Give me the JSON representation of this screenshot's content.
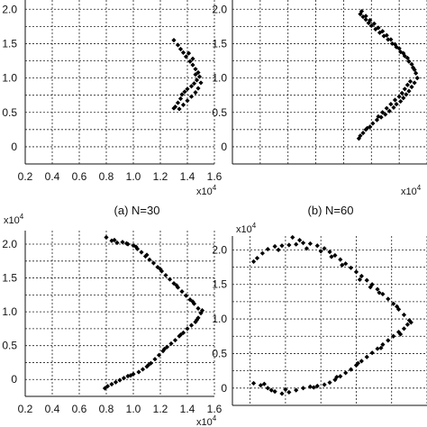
{
  "figure": {
    "panels": [
      {
        "caption": "(a) N=30",
        "x_multiplier_text": "x10",
        "x_multiplier_exp": "4",
        "y_multiplier_text": "",
        "y_multiplier_exp": "",
        "x_tick_labels": [
          "0.2",
          "0.4",
          "0.6",
          "0.8",
          "1.0",
          "1.2",
          "1.4",
          "1.6"
        ],
        "y_tick_labels": [
          "0",
          "0.5",
          "1.0",
          "1.5",
          "2.0"
        ]
      },
      {
        "caption": "(b) N=60",
        "x_multiplier_text": "x10",
        "x_multiplier_exp": "4",
        "y_multiplier_text": "",
        "y_multiplier_exp": "",
        "x_tick_labels": [],
        "y_tick_labels": [
          "0",
          "0.5",
          "1.0",
          "1.5",
          "2.0"
        ]
      },
      {
        "caption": "",
        "x_multiplier_text": "x10",
        "x_multiplier_exp": "4",
        "y_multiplier_text": "x10",
        "y_multiplier_exp": "4",
        "x_tick_labels": [
          "0.2",
          "0.4",
          "0.6",
          "0.8",
          "1.0",
          "1.2",
          "1.4",
          "1.6"
        ],
        "y_tick_labels": [
          "0",
          "0.5",
          "1.0",
          "1.5",
          "2.0"
        ]
      },
      {
        "caption": "",
        "x_multiplier_text": "",
        "x_multiplier_exp": "",
        "y_multiplier_text": "x10",
        "y_multiplier_exp": "4",
        "x_tick_labels": [],
        "y_tick_labels": [
          "0",
          "0.5",
          "1.0",
          "1.5",
          "2.0"
        ]
      }
    ]
  },
  "chart_data": [
    {
      "type": "scatter",
      "title": "(a) N=30",
      "xlabel": "x10^4",
      "ylabel": "",
      "xlim": [
        0.2,
        1.6
      ],
      "ylim": [
        -0.25,
        2.2
      ],
      "grid": true,
      "points": [
        [
          1.3,
          1.55
        ],
        [
          1.33,
          1.48
        ],
        [
          1.35,
          1.42
        ],
        [
          1.37,
          1.37
        ],
        [
          1.39,
          1.31
        ],
        [
          1.42,
          1.24
        ],
        [
          1.44,
          1.19
        ],
        [
          1.46,
          1.13
        ],
        [
          1.48,
          1.08
        ],
        [
          1.49,
          1.02
        ],
        [
          1.47,
          0.97
        ],
        [
          1.45,
          0.92
        ],
        [
          1.43,
          0.88
        ],
        [
          1.4,
          0.84
        ],
        [
          1.38,
          0.8
        ],
        [
          1.36,
          0.76
        ],
        [
          1.35,
          0.7
        ],
        [
          1.33,
          0.64
        ],
        [
          1.31,
          0.58
        ],
        [
          1.34,
          0.55
        ],
        [
          1.37,
          0.61
        ],
        [
          1.4,
          0.67
        ],
        [
          1.43,
          0.73
        ],
        [
          1.46,
          0.79
        ],
        [
          1.48,
          0.85
        ],
        [
          1.5,
          0.93
        ],
        [
          1.46,
          1.05
        ],
        [
          1.44,
          1.28
        ],
        [
          1.41,
          1.36
        ],
        [
          1.3,
          0.56
        ]
      ]
    },
    {
      "type": "scatter",
      "title": "(b) N=60",
      "xlabel": "x10^4",
      "ylabel": "",
      "xlim": [
        0.2,
        1.6
      ],
      "ylim": [
        -0.25,
        2.2
      ],
      "grid": true,
      "points": [
        [
          1.12,
          1.93
        ],
        [
          1.14,
          1.89
        ],
        [
          1.16,
          1.85
        ],
        [
          1.18,
          1.8
        ],
        [
          1.2,
          1.76
        ],
        [
          1.23,
          1.71
        ],
        [
          1.26,
          1.66
        ],
        [
          1.29,
          1.61
        ],
        [
          1.32,
          1.56
        ],
        [
          1.35,
          1.5
        ],
        [
          1.38,
          1.45
        ],
        [
          1.41,
          1.38
        ],
        [
          1.44,
          1.32
        ],
        [
          1.47,
          1.24
        ],
        [
          1.5,
          1.15
        ],
        [
          1.52,
          1.07
        ],
        [
          1.53,
          1.0
        ],
        [
          1.51,
          0.93
        ],
        [
          1.49,
          0.87
        ],
        [
          1.47,
          0.81
        ],
        [
          1.45,
          0.76
        ],
        [
          1.43,
          0.71
        ],
        [
          1.41,
          0.66
        ],
        [
          1.38,
          0.62
        ],
        [
          1.36,
          0.57
        ],
        [
          1.33,
          0.52
        ],
        [
          1.3,
          0.47
        ],
        [
          1.27,
          0.43
        ],
        [
          1.24,
          0.39
        ],
        [
          1.21,
          0.34
        ],
        [
          1.19,
          0.29
        ],
        [
          1.16,
          0.25
        ],
        [
          1.14,
          0.2
        ],
        [
          1.12,
          0.16
        ],
        [
          1.11,
          0.12
        ],
        [
          1.13,
          1.97
        ],
        [
          1.16,
          1.9
        ],
        [
          1.19,
          1.84
        ],
        [
          1.22,
          1.79
        ],
        [
          1.25,
          1.73
        ],
        [
          1.28,
          1.68
        ],
        [
          1.31,
          1.62
        ],
        [
          1.34,
          1.56
        ],
        [
          1.37,
          1.49
        ],
        [
          1.4,
          1.43
        ],
        [
          1.43,
          1.36
        ],
        [
          1.46,
          1.29
        ],
        [
          1.49,
          1.2
        ],
        [
          1.51,
          1.12
        ],
        [
          1.48,
          0.95
        ],
        [
          1.46,
          0.9
        ],
        [
          1.44,
          0.84
        ],
        [
          1.42,
          0.78
        ],
        [
          1.4,
          0.73
        ],
        [
          1.37,
          0.68
        ],
        [
          1.34,
          0.62
        ],
        [
          1.31,
          0.56
        ],
        [
          1.28,
          0.5
        ],
        [
          1.25,
          0.44
        ],
        [
          1.17,
          0.27
        ]
      ]
    },
    {
      "type": "scatter",
      "title": "",
      "xlabel": "x10^4",
      "ylabel": "x10^4",
      "xlim": [
        0.2,
        1.6
      ],
      "ylim": [
        -0.25,
        2.2
      ],
      "grid": true,
      "points": [
        [
          0.8,
          2.1
        ],
        [
          0.84,
          2.05
        ],
        [
          0.88,
          2.02
        ],
        [
          0.92,
          2.03
        ],
        [
          0.96,
          2.0
        ],
        [
          1.0,
          1.98
        ],
        [
          1.03,
          1.93
        ],
        [
          1.06,
          1.88
        ],
        [
          1.09,
          1.82
        ],
        [
          1.12,
          1.77
        ],
        [
          1.15,
          1.72
        ],
        [
          1.18,
          1.66
        ],
        [
          1.21,
          1.6
        ],
        [
          1.24,
          1.54
        ],
        [
          1.27,
          1.48
        ],
        [
          1.3,
          1.42
        ],
        [
          1.33,
          1.36
        ],
        [
          1.36,
          1.3
        ],
        [
          1.39,
          1.24
        ],
        [
          1.42,
          1.18
        ],
        [
          1.45,
          1.12
        ],
        [
          1.48,
          1.05
        ],
        [
          1.5,
          0.98
        ],
        [
          1.48,
          0.91
        ],
        [
          1.46,
          0.85
        ],
        [
          1.43,
          0.8
        ],
        [
          1.4,
          0.75
        ],
        [
          1.37,
          0.69
        ],
        [
          1.34,
          0.64
        ],
        [
          1.31,
          0.58
        ],
        [
          1.28,
          0.53
        ],
        [
          1.25,
          0.48
        ],
        [
          1.22,
          0.42
        ],
        [
          1.19,
          0.36
        ],
        [
          1.16,
          0.3
        ],
        [
          1.13,
          0.24
        ],
        [
          1.1,
          0.19
        ],
        [
          1.07,
          0.15
        ],
        [
          1.04,
          0.11
        ],
        [
          1.0,
          0.08
        ],
        [
          0.96,
          0.05
        ],
        [
          0.93,
          0.02
        ],
        [
          0.9,
          -0.01
        ],
        [
          0.87,
          -0.04
        ],
        [
          0.84,
          -0.07
        ],
        [
          0.81,
          -0.1
        ],
        [
          0.79,
          -0.13
        ],
        [
          0.86,
          2.06
        ],
        [
          0.95,
          2.01
        ],
        [
          1.02,
          1.96
        ],
        [
          1.1,
          1.84
        ],
        [
          1.2,
          1.63
        ],
        [
          1.32,
          1.39
        ],
        [
          1.44,
          1.15
        ],
        [
          1.51,
          1.02
        ],
        [
          1.47,
          0.88
        ],
        [
          1.35,
          0.66
        ],
        [
          1.23,
          0.45
        ],
        [
          1.11,
          0.21
        ],
        [
          0.98,
          0.06
        ]
      ]
    },
    {
      "type": "scatter",
      "title": "",
      "xlabel": "",
      "ylabel": "x10^4",
      "xlim": [
        0.5,
        1.6
      ],
      "ylim": [
        -0.25,
        2.2
      ],
      "grid": true,
      "points": [
        [
          0.62,
          1.83
        ],
        [
          0.64,
          1.88
        ],
        [
          0.67,
          1.95
        ],
        [
          0.7,
          2.01
        ],
        [
          0.74,
          2.05
        ],
        [
          0.78,
          2.06
        ],
        [
          0.82,
          2.07
        ],
        [
          0.86,
          2.08
        ],
        [
          0.9,
          2.1
        ],
        [
          0.94,
          2.09
        ],
        [
          0.98,
          2.06
        ],
        [
          1.02,
          2.02
        ],
        [
          1.05,
          1.97
        ],
        [
          1.08,
          1.92
        ],
        [
          1.11,
          1.86
        ],
        [
          1.14,
          1.8
        ],
        [
          1.17,
          1.74
        ],
        [
          1.2,
          1.68
        ],
        [
          1.23,
          1.62
        ],
        [
          1.26,
          1.56
        ],
        [
          1.29,
          1.5
        ],
        [
          1.32,
          1.43
        ],
        [
          1.35,
          1.36
        ],
        [
          1.38,
          1.29
        ],
        [
          1.41,
          1.22
        ],
        [
          1.44,
          1.14
        ],
        [
          1.47,
          1.06
        ],
        [
          1.5,
          0.98
        ],
        [
          1.49,
          0.92
        ],
        [
          1.47,
          0.86
        ],
        [
          1.44,
          0.81
        ],
        [
          1.41,
          0.75
        ],
        [
          1.38,
          0.69
        ],
        [
          1.35,
          0.63
        ],
        [
          1.32,
          0.57
        ],
        [
          1.29,
          0.51
        ],
        [
          1.26,
          0.45
        ],
        [
          1.23,
          0.39
        ],
        [
          1.2,
          0.33
        ],
        [
          1.17,
          0.27
        ],
        [
          1.14,
          0.22
        ],
        [
          1.11,
          0.17
        ],
        [
          1.08,
          0.12
        ],
        [
          1.05,
          0.08
        ],
        [
          1.02,
          0.05
        ],
        [
          0.98,
          0.03
        ],
        [
          0.94,
          0.02
        ],
        [
          0.9,
          0.0
        ],
        [
          0.86,
          -0.03
        ],
        [
          0.82,
          -0.06
        ],
        [
          0.78,
          -0.08
        ],
        [
          0.74,
          -0.05
        ],
        [
          0.7,
          0.0
        ],
        [
          0.66,
          0.04
        ],
        [
          0.62,
          0.07
        ],
        [
          0.84,
          2.18
        ],
        [
          0.88,
          2.14
        ],
        [
          0.76,
          2.0
        ],
        [
          1.0,
          1.98
        ],
        [
          1.12,
          1.78
        ],
        [
          1.22,
          1.57
        ],
        [
          1.33,
          1.38
        ],
        [
          1.43,
          1.18
        ],
        [
          1.51,
          0.95
        ],
        [
          1.45,
          0.78
        ],
        [
          1.34,
          0.58
        ],
        [
          1.21,
          0.36
        ],
        [
          1.09,
          0.16
        ],
        [
          0.96,
          0.01
        ],
        [
          0.8,
          -0.02
        ],
        [
          0.68,
          0.06
        ],
        [
          0.72,
          -0.03
        ],
        [
          0.92,
          2.02
        ],
        [
          1.06,
          1.9
        ],
        [
          1.28,
          1.46
        ]
      ]
    }
  ]
}
